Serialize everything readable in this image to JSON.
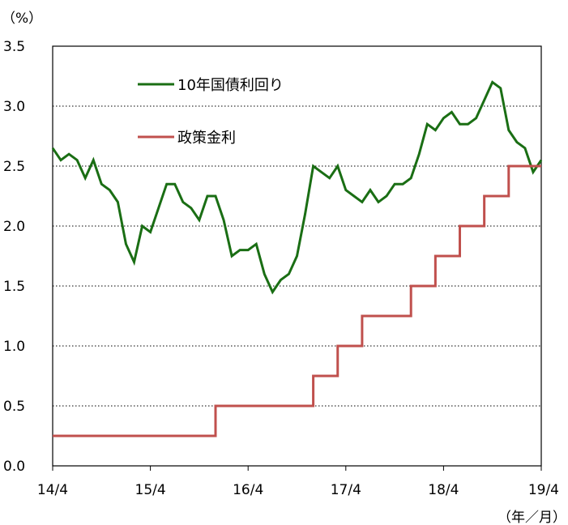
{
  "chart_data": {
    "type": "line",
    "y_unit": "（%）",
    "x_unit": "（年／月）",
    "ylim": [
      0.0,
      3.5
    ],
    "y_ticks": [
      "0.0",
      "0.5",
      "1.0",
      "1.5",
      "2.0",
      "2.5",
      "3.0",
      "3.5"
    ],
    "xlim": [
      "2014-04",
      "2019-04"
    ],
    "x_ticks": [
      "14/4",
      "15/4",
      "16/4",
      "17/4",
      "18/4",
      "19/4"
    ],
    "grid": "horizontal-dotted",
    "legend_placement": "top-left",
    "series": [
      {
        "name": "10年国債利回り",
        "color": "#1a6e14",
        "points": [
          [
            "2014-04",
            2.65
          ],
          [
            "2014-05",
            2.55
          ],
          [
            "2014-06",
            2.6
          ],
          [
            "2014-07",
            2.55
          ],
          [
            "2014-08",
            2.4
          ],
          [
            "2014-09",
            2.55
          ],
          [
            "2014-10",
            2.35
          ],
          [
            "2014-11",
            2.3
          ],
          [
            "2014-12",
            2.2
          ],
          [
            "2015-01",
            1.85
          ],
          [
            "2015-02",
            1.7
          ],
          [
            "2015-03",
            2.0
          ],
          [
            "2015-04",
            1.95
          ],
          [
            "2015-05",
            2.15
          ],
          [
            "2015-06",
            2.35
          ],
          [
            "2015-07",
            2.35
          ],
          [
            "2015-08",
            2.2
          ],
          [
            "2015-09",
            2.15
          ],
          [
            "2015-10",
            2.05
          ],
          [
            "2015-11",
            2.25
          ],
          [
            "2015-12",
            2.25
          ],
          [
            "2016-01",
            2.05
          ],
          [
            "2016-02",
            1.75
          ],
          [
            "2016-03",
            1.8
          ],
          [
            "2016-04",
            1.8
          ],
          [
            "2016-05",
            1.85
          ],
          [
            "2016-06",
            1.6
          ],
          [
            "2016-07",
            1.45
          ],
          [
            "2016-08",
            1.55
          ],
          [
            "2016-09",
            1.6
          ],
          [
            "2016-10",
            1.75
          ],
          [
            "2016-11",
            2.1
          ],
          [
            "2016-12",
            2.5
          ],
          [
            "2017-01",
            2.45
          ],
          [
            "2017-02",
            2.4
          ],
          [
            "2017-03",
            2.5
          ],
          [
            "2017-04",
            2.3
          ],
          [
            "2017-05",
            2.25
          ],
          [
            "2017-06",
            2.2
          ],
          [
            "2017-07",
            2.3
          ],
          [
            "2017-08",
            2.2
          ],
          [
            "2017-09",
            2.25
          ],
          [
            "2017-10",
            2.35
          ],
          [
            "2017-11",
            2.35
          ],
          [
            "2017-12",
            2.4
          ],
          [
            "2018-01",
            2.6
          ],
          [
            "2018-02",
            2.85
          ],
          [
            "2018-03",
            2.8
          ],
          [
            "2018-04",
            2.9
          ],
          [
            "2018-05",
            2.95
          ],
          [
            "2018-06",
            2.85
          ],
          [
            "2018-07",
            2.85
          ],
          [
            "2018-08",
            2.9
          ],
          [
            "2018-09",
            3.05
          ],
          [
            "2018-10",
            3.2
          ],
          [
            "2018-11",
            3.15
          ],
          [
            "2018-12",
            2.8
          ],
          [
            "2019-01",
            2.7
          ],
          [
            "2019-02",
            2.65
          ],
          [
            "2019-03",
            2.45
          ],
          [
            "2019-04",
            2.55
          ]
        ]
      },
      {
        "name": "政策金利",
        "color": "#c0504d",
        "step": true,
        "points": [
          [
            "2014-04",
            0.25
          ],
          [
            "2015-12",
            0.5
          ],
          [
            "2016-12",
            0.75
          ],
          [
            "2017-03",
            1.0
          ],
          [
            "2017-06",
            1.25
          ],
          [
            "2017-12",
            1.5
          ],
          [
            "2018-03",
            1.75
          ],
          [
            "2018-06",
            2.0
          ],
          [
            "2018-09",
            2.25
          ],
          [
            "2018-12",
            2.5
          ],
          [
            "2019-04",
            2.5
          ]
        ]
      }
    ]
  }
}
